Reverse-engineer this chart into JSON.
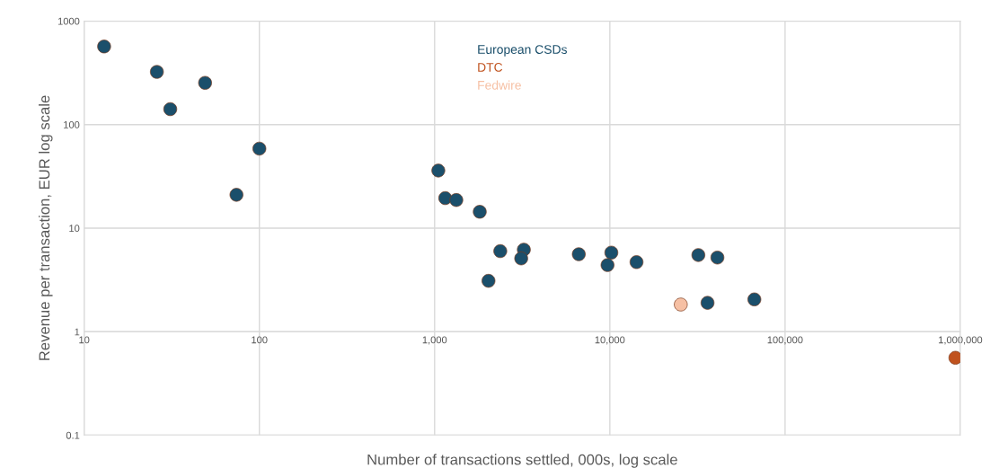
{
  "chart_data": {
    "type": "scatter",
    "xlabel": "Number of transactions settled, 000s, log scale",
    "ylabel": "Revenue per transaction, EUR log scale",
    "log": "xy",
    "grid": true,
    "legend": "top",
    "marker": "circle",
    "xlim": [
      10,
      1000000
    ],
    "ylim": [
      0.1,
      1000
    ],
    "xticks": [
      10,
      100,
      {
        "value": 1000,
        "label": "1,000"
      },
      {
        "value": 10000,
        "label": "10,000"
      },
      {
        "value": 100000,
        "label": "100,000"
      },
      {
        "value": 1000000,
        "label": "1,000,000"
      }
    ],
    "yticks": [
      0.1,
      1,
      10,
      100,
      1000
    ],
    "series": [
      {
        "name": "European CSDs",
        "color": "#1b4f6b",
        "x": [
          13,
          26,
          31,
          49,
          100,
          74,
          1050,
          1150,
          1330,
          1810,
          2030,
          2370,
          3230,
          3120,
          6650,
          10200,
          9700,
          14200,
          32000,
          41100,
          36100,
          66800
        ],
        "values": [
          568,
          323,
          141,
          253,
          58.6,
          21,
          36,
          19.5,
          18.7,
          14.4,
          3.1,
          6.0,
          6.2,
          5.1,
          5.6,
          5.8,
          4.4,
          4.7,
          5.5,
          5.2,
          1.9,
          2.05
        ]
      },
      {
        "name": "DTC",
        "color": "#c0521e",
        "x": [
          938000
        ],
        "values": [
          0.56
        ]
      },
      {
        "name": "Fedwire",
        "color": "#f6c0a4",
        "x": [
          25400
        ],
        "values": [
          1.83
        ]
      }
    ]
  }
}
